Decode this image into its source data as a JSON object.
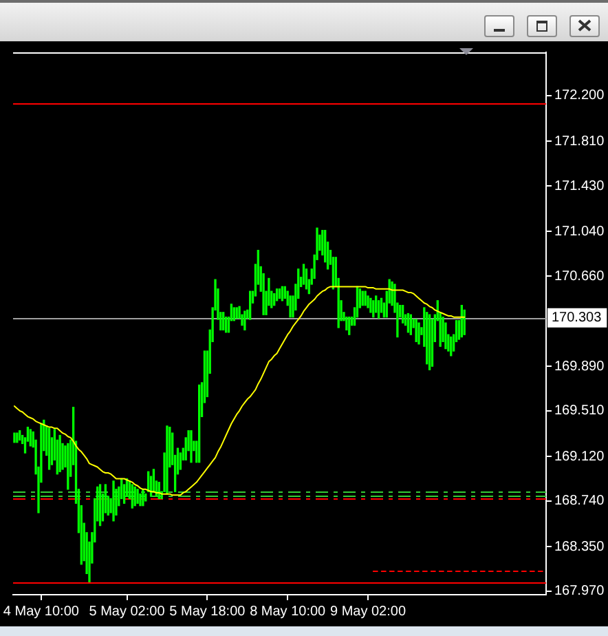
{
  "chart_data": {
    "type": "bar",
    "categories": [
      null,
      null,
      null,
      null,
      null,
      null,
      null,
      null,
      null,
      null,
      "4 May 10:00",
      null,
      null,
      null,
      null,
      null,
      null,
      null,
      null,
      null,
      null,
      null,
      null,
      null,
      null,
      null,
      null,
      null,
      null,
      null,
      null,
      null,
      null,
      null,
      null,
      null,
      null,
      null,
      null,
      null,
      null,
      null,
      "5 May 02:00",
      null,
      null,
      null,
      null,
      null,
      null,
      null,
      null,
      null,
      null,
      null,
      null,
      null,
      null,
      null,
      null,
      null,
      null,
      null,
      null,
      null,
      null,
      null,
      null,
      null,
      null,
      null,
      null,
      null,
      "5 May 18:00",
      null,
      null,
      null,
      null,
      null,
      null,
      null,
      null,
      null,
      null,
      null,
      null,
      null,
      null,
      null,
      null,
      null,
      null,
      null,
      null,
      null,
      null,
      null,
      null,
      null,
      null,
      null,
      null,
      null,
      "8 May 10:00",
      null,
      null,
      null,
      null,
      null,
      null,
      null,
      null,
      null,
      null,
      null,
      null,
      null,
      null,
      null,
      null,
      null,
      null,
      null,
      null,
      null,
      null,
      null,
      null,
      null,
      null,
      null,
      null,
      null,
      "9 May 02:00",
      null,
      null,
      null,
      null,
      null,
      null,
      null,
      null,
      null,
      null,
      null,
      null,
      null,
      null,
      null,
      null,
      null,
      null,
      null,
      null,
      null,
      null,
      null,
      null,
      null,
      null,
      null,
      null,
      null,
      null,
      null,
      null,
      null,
      null,
      null,
      null,
      null,
      null,
      null,
      null,
      null,
      null,
      null,
      null,
      null,
      null,
      null,
      null,
      null,
      null,
      null,
      null,
      null,
      null,
      null,
      null,
      null,
      null,
      null,
      null,
      null,
      null,
      null,
      null,
      null,
      null
    ],
    "ylim": [
      167.94,
      172.57
    ],
    "yticks": [
      {
        "value": 172.2,
        "label": "172.200"
      },
      {
        "value": 171.81,
        "label": "171.810"
      },
      {
        "value": 171.43,
        "label": "171.430"
      },
      {
        "value": 171.04,
        "label": "171.040"
      },
      {
        "value": 170.66,
        "label": "170.660"
      },
      {
        "value": 169.89,
        "label": "169.890"
      },
      {
        "value": 169.51,
        "label": "169.510"
      },
      {
        "value": 169.12,
        "label": "169.120"
      },
      {
        "value": 168.74,
        "label": "168.740"
      },
      {
        "value": 168.35,
        "label": "168.350"
      },
      {
        "value": 167.97,
        "label": "167.970"
      }
    ],
    "series": [
      {
        "color": "#00ff00",
        "base": [
          169.24,
          169.24,
          169.26,
          169.23,
          169.15,
          169.25,
          169.21,
          169.2,
          168.97,
          168.64,
          168.9,
          169.17,
          169.13,
          169.01,
          169.05,
          169.09,
          168.97,
          168.99,
          169.01,
          169.03,
          168.84,
          168.95,
          169.05,
          168.72,
          168.47,
          168.2,
          168.23,
          168.12,
          168.05,
          168.21,
          168.39,
          168.57,
          168.53,
          168.57,
          168.64,
          168.62,
          168.64,
          168.57,
          168.62,
          168.7,
          168.76,
          168.72,
          168.78,
          168.76,
          168.68,
          168.7,
          168.72,
          168.7,
          168.7,
          168.74,
          168.82,
          168.78,
          168.82,
          168.78,
          168.76,
          168.76,
          168.82,
          168.8,
          169.03,
          169.05,
          168.82,
          168.97,
          169.01,
          169.09,
          169.09,
          169.17,
          169.07,
          169.17,
          169.07,
          169.07,
          169.46,
          169.58,
          169.63,
          169.83,
          170.1,
          170.37,
          170.29,
          170.2,
          170.2,
          170.18,
          170.18,
          170.28,
          170.28,
          170.3,
          170.3,
          170.24,
          170.2,
          170.3,
          170.29,
          170.43,
          170.49,
          170.59,
          170.53,
          170.33,
          170.33,
          170.41,
          170.39,
          170.41,
          170.45,
          170.47,
          170.45,
          170.47,
          170.41,
          170.31,
          170.31,
          170.37,
          170.47,
          170.57,
          170.59,
          170.55,
          170.51,
          170.59,
          170.64,
          170.8,
          170.88,
          170.84,
          170.78,
          170.72,
          170.76,
          170.55,
          170.57,
          170.22,
          170.28,
          170.28,
          170.2,
          170.16,
          170.24,
          170.24,
          170.31,
          170.39,
          170.41,
          170.41,
          170.39,
          170.35,
          170.31,
          170.35,
          170.3,
          170.35,
          170.31,
          170.31,
          170.43,
          170.41,
          170.35,
          170.14,
          170.31,
          170.26,
          170.24,
          170.18,
          170.16,
          170.22,
          170.1,
          170.08,
          170.16,
          170.06,
          169.91,
          169.86,
          169.89,
          170.1,
          170.28,
          170.06,
          170.1,
          170.04,
          170.02,
          169.98,
          170.02,
          170.1,
          170.12,
          170.14,
          170.16,
          null,
          null,
          null,
          null,
          null,
          null,
          null,
          null,
          null,
          null,
          null,
          null,
          null,
          null,
          null,
          null,
          null,
          null,
          null,
          null,
          null,
          null,
          null,
          null,
          null,
          null,
          null,
          null,
          null,
          null
        ],
        "values": [
          0.08,
          0.08,
          0.08,
          0.07,
          0.13,
          0.12,
          0.14,
          0.13,
          0.29,
          0.39,
          0.5,
          0.26,
          0.25,
          0.35,
          0.23,
          0.26,
          0.29,
          0.31,
          0.22,
          0.18,
          0.39,
          0.31,
          0.49,
          0.53,
          0.37,
          0.5,
          0.32,
          0.35,
          0.34,
          0.26,
          0.37,
          0.29,
          0.35,
          0.23,
          0.24,
          0.16,
          0.12,
          0.34,
          0.22,
          0.16,
          0.17,
          0.16,
          0.15,
          0.15,
          0.2,
          0.16,
          0.12,
          0.1,
          0.14,
          0.06,
          0.17,
          0.17,
          0.19,
          0.13,
          0.14,
          0.06,
          0.33,
          0.58,
          0.34,
          0.27,
          0.31,
          0.22,
          0.14,
          0.1,
          0.19,
          0.17,
          0.27,
          0.08,
          0.18,
          0.66,
          0.29,
          0.44,
          0.39,
          0.37,
          0.29,
          0.26,
          0.26,
          0.15,
          0.15,
          0.13,
          0.13,
          0.14,
          0.11,
          0.09,
          0.1,
          0.09,
          0.16,
          0.07,
          0.24,
          0.1,
          0.27,
          0.29,
          0.21,
          0.35,
          0.2,
          0.23,
          0.14,
          0.1,
          0.1,
          0.08,
          0.12,
          0.1,
          0.12,
          0.18,
          0.18,
          0.22,
          0.25,
          0.08,
          0.17,
          0.17,
          0.12,
          0.13,
          0.2,
          0.27,
          0.13,
          0.21,
          0.27,
          0.23,
          0.12,
          0.27,
          0.25,
          0.42,
          0.17,
          0.07,
          0.11,
          0.15,
          0.07,
          0.15,
          0.26,
          0.16,
          0.12,
          0.12,
          0.1,
          0.12,
          0.14,
          0.14,
          0.15,
          0.12,
          0.12,
          0.22,
          0.2,
          0.2,
          0.24,
          0.29,
          0.1,
          0.15,
          0.09,
          0.16,
          0.17,
          0.07,
          0.19,
          0.18,
          0.06,
          0.33,
          0.44,
          0.47,
          0.4,
          0.23,
          0.17,
          0.29,
          0.21,
          0.22,
          0.14,
          0.16,
          0.14,
          0.18,
          0.16,
          0.27,
          0.21,
          null,
          null,
          null,
          null,
          null,
          null,
          null,
          null,
          null,
          null,
          null,
          null,
          null,
          null,
          null,
          null,
          null,
          null,
          null,
          null,
          null,
          null,
          null,
          null,
          null,
          null,
          null,
          null,
          null,
          null
        ]
      },
      {
        "type": "line",
        "color": "#ffff00",
        "values": [
          169.55,
          169.53,
          169.51,
          169.5,
          169.48,
          169.46,
          169.45,
          169.44,
          169.42,
          169.41,
          169.4,
          169.39,
          169.38,
          169.37,
          169.37,
          169.36,
          169.36,
          169.34,
          169.32,
          169.31,
          169.29,
          169.28,
          169.25,
          169.21,
          169.18,
          169.16,
          169.13,
          169.1,
          169.06,
          169.05,
          169.04,
          169.03,
          169.01,
          168.99,
          168.98,
          168.98,
          168.97,
          168.95,
          168.93,
          168.93,
          168.93,
          168.93,
          168.92,
          168.91,
          168.9,
          168.88,
          168.87,
          168.85,
          168.84,
          168.84,
          168.83,
          168.82,
          168.82,
          168.81,
          168.81,
          168.8,
          168.8,
          168.8,
          168.8,
          168.79,
          168.79,
          168.79,
          168.79,
          168.81,
          168.82,
          168.84,
          168.86,
          168.88,
          168.9,
          168.93,
          168.96,
          168.99,
          169.02,
          169.05,
          169.08,
          169.11,
          169.16,
          169.2,
          169.25,
          169.3,
          169.35,
          169.4,
          169.44,
          169.48,
          169.51,
          169.55,
          169.58,
          169.61,
          169.63,
          169.66,
          169.69,
          169.74,
          169.78,
          169.83,
          169.88,
          169.93,
          169.95,
          169.98,
          170.0,
          170.04,
          170.08,
          170.12,
          170.16,
          170.19,
          170.23,
          170.26,
          170.29,
          170.32,
          170.36,
          170.39,
          170.42,
          170.44,
          170.46,
          170.49,
          170.51,
          170.53,
          170.54,
          170.56,
          170.57,
          170.57,
          170.57,
          170.57,
          170.57,
          170.57,
          170.57,
          170.57,
          170.57,
          170.57,
          170.57,
          170.57,
          170.57,
          170.57,
          170.56,
          170.56,
          170.56,
          170.55,
          170.55,
          170.55,
          170.55,
          170.55,
          170.55,
          170.54,
          170.54,
          170.54,
          170.54,
          170.54,
          170.53,
          170.52,
          170.52,
          170.51,
          170.49,
          170.47,
          170.45,
          170.43,
          170.42,
          170.4,
          170.39,
          170.37,
          170.36,
          170.35,
          170.34,
          170.33,
          170.32,
          170.32,
          170.31,
          170.31,
          170.31,
          170.31,
          170.31,
          null,
          null,
          null,
          null,
          null,
          null,
          null,
          null,
          null,
          null,
          null,
          null,
          null,
          null,
          null,
          null,
          null,
          null,
          null,
          null,
          null,
          null,
          null,
          null,
          null,
          null,
          null,
          null,
          null,
          null
        ]
      },
      {
        "type": "line",
        "color": "#ff0000",
        "line_style": "dotted",
        "values": [
          null,
          null,
          null,
          null,
          null,
          null,
          null,
          null,
          null,
          null,
          null,
          null,
          null,
          null,
          null,
          null,
          null,
          null,
          null,
          null,
          null,
          null,
          null,
          null,
          null,
          null,
          null,
          null,
          null,
          null,
          null,
          null,
          null,
          null,
          null,
          null,
          null,
          null,
          null,
          null,
          null,
          null,
          null,
          null,
          null,
          null,
          null,
          null,
          null,
          null,
          null,
          null,
          null,
          null,
          null,
          null,
          null,
          null,
          null,
          null,
          null,
          null,
          null,
          null,
          null,
          null,
          null,
          null,
          null,
          null,
          null,
          null,
          null,
          null,
          null,
          null,
          null,
          null,
          null,
          null,
          null,
          null,
          null,
          null,
          null,
          null,
          null,
          null,
          null,
          null,
          null,
          null,
          null,
          null,
          null,
          null,
          null,
          null,
          null,
          null,
          null,
          null,
          null,
          null,
          null,
          null,
          null,
          null,
          null,
          null,
          null,
          null,
          null,
          null,
          null,
          null,
          null,
          null,
          null,
          null,
          null,
          null,
          null,
          null,
          null,
          null,
          null,
          null,
          null,
          null,
          null,
          null,
          null,
          null,
          168.14,
          168.14,
          168.14,
          168.14,
          168.14,
          168.14,
          168.14,
          168.14,
          168.14,
          168.14,
          168.14,
          168.14,
          168.14,
          168.14,
          168.14,
          168.14,
          168.14,
          168.14,
          168.14,
          168.14,
          168.14,
          168.14,
          168.14,
          168.14,
          168.14,
          168.14,
          168.14,
          168.14,
          168.14,
          168.14,
          168.14,
          168.14,
          168.14,
          168.14,
          168.14,
          168.14,
          168.14,
          168.14,
          168.14,
          168.14,
          168.14,
          168.14,
          168.14,
          168.14,
          168.14,
          168.14,
          168.14,
          168.14,
          168.14,
          168.14,
          168.14,
          168.14,
          168.14,
          168.14,
          168.14,
          168.14,
          168.14,
          168.14,
          168.14,
          168.14,
          168.14,
          168.14,
          168.14,
          168.14,
          168.14
        ]
      }
    ],
    "ref_lines": [
      {
        "axis": "y",
        "value": 172.13,
        "color": "#ff0000",
        "line_style": "solid"
      },
      {
        "axis": "y",
        "value": 168.05,
        "color": "#ff0000",
        "line_style": "solid"
      },
      {
        "axis": "y",
        "value": 170.303,
        "label": "170.303",
        "color": "#a0a0a0",
        "line_style": "solid"
      },
      {
        "axis": "y",
        "value": 168.82,
        "color": "#33cc33",
        "line_style": "dashed"
      },
      {
        "axis": "y",
        "value": 168.79,
        "color": "#33cc33",
        "line_style": "dashed"
      },
      {
        "axis": "y",
        "value": 168.76,
        "color": "#ff0000",
        "line_style": "dashed"
      }
    ]
  }
}
